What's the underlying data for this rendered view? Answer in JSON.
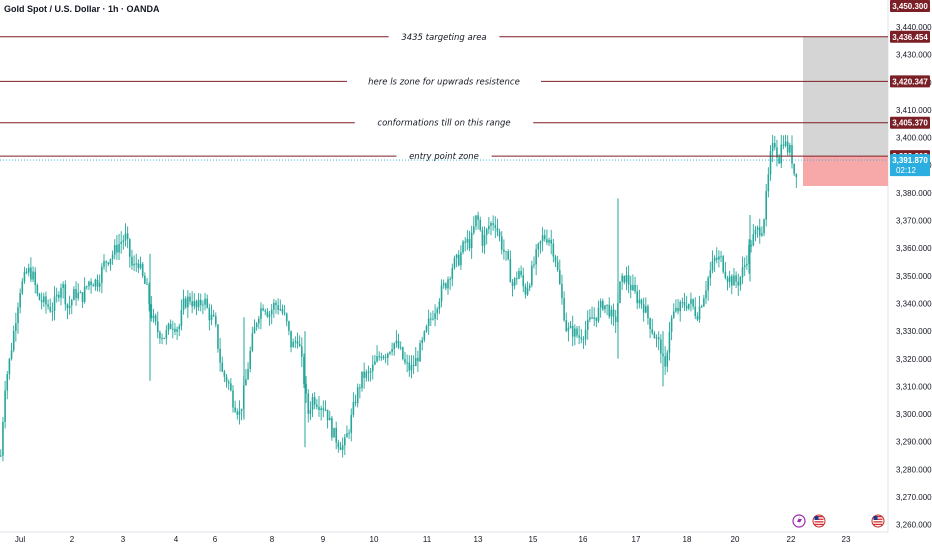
{
  "title": "Gold Spot / U.S. Dollar · 1h · OANDA",
  "chart_data": {
    "type": "candlestick",
    "symbol": "Gold Spot / U.S. Dollar",
    "interval": "1h",
    "source": "OANDA",
    "ylim": [
      3255,
      3452
    ],
    "y_ticks": [
      3260,
      3270,
      3280,
      3290,
      3300,
      3310,
      3320,
      3330,
      3340,
      3350,
      3360,
      3370,
      3380,
      3390,
      3400,
      3410,
      3420,
      3430,
      3440
    ],
    "x_ticks": [
      "Jul",
      "2",
      "3",
      "4",
      "6",
      "8",
      "9",
      "10",
      "11",
      "13",
      "15",
      "16",
      "17",
      "18",
      "20",
      "22",
      "23"
    ],
    "price_path": [
      [
        0,
        3285
      ],
      [
        4,
        3310
      ],
      [
        9,
        3320
      ],
      [
        13,
        3330
      ],
      [
        19,
        3345
      ],
      [
        27,
        3352
      ],
      [
        32,
        3350
      ],
      [
        37,
        3342
      ],
      [
        44,
        3340
      ],
      [
        51,
        3338
      ],
      [
        56,
        3342
      ],
      [
        61,
        3348
      ],
      [
        67,
        3338
      ],
      [
        74,
        3344
      ],
      [
        81,
        3342
      ],
      [
        88,
        3348
      ],
      [
        97,
        3348
      ],
      [
        104,
        3355
      ],
      [
        112,
        3358
      ],
      [
        119,
        3362
      ],
      [
        125,
        3364
      ],
      [
        132,
        3352
      ],
      [
        137,
        3356
      ],
      [
        141,
        3350
      ],
      [
        146,
        3345
      ],
      [
        151,
        3335
      ],
      [
        157,
        3330
      ],
      [
        164,
        3328
      ],
      [
        171,
        3333
      ],
      [
        178,
        3331
      ],
      [
        183,
        3340
      ],
      [
        189,
        3342
      ],
      [
        196,
        3338
      ],
      [
        203,
        3342
      ],
      [
        208,
        3336
      ],
      [
        214,
        3333
      ],
      [
        221,
        3315
      ],
      [
        227,
        3312
      ],
      [
        232,
        3305
      ],
      [
        239,
        3300
      ],
      [
        245,
        3312
      ],
      [
        251,
        3326
      ],
      [
        257,
        3336
      ],
      [
        263,
        3340
      ],
      [
        268,
        3336
      ],
      [
        274,
        3340
      ],
      [
        280,
        3338
      ],
      [
        285,
        3334
      ],
      [
        291,
        3324
      ],
      [
        297,
        3328
      ],
      [
        302,
        3316
      ],
      [
        307,
        3300
      ],
      [
        312,
        3306
      ],
      [
        318,
        3304
      ],
      [
        325,
        3302
      ],
      [
        331,
        3294
      ],
      [
        337,
        3290
      ],
      [
        343,
        3288
      ],
      [
        349,
        3296
      ],
      [
        355,
        3306
      ],
      [
        362,
        3314
      ],
      [
        368,
        3314
      ],
      [
        374,
        3318
      ],
      [
        380,
        3322
      ],
      [
        386,
        3322
      ],
      [
        392,
        3326
      ],
      [
        398,
        3324
      ],
      [
        404,
        3318
      ],
      [
        410,
        3316
      ],
      [
        416,
        3320
      ],
      [
        422,
        3326
      ],
      [
        428,
        3333
      ],
      [
        434,
        3338
      ],
      [
        440,
        3344
      ],
      [
        446,
        3348
      ],
      [
        452,
        3354
      ],
      [
        458,
        3356
      ],
      [
        464,
        3362
      ],
      [
        470,
        3362
      ],
      [
        476,
        3372
      ],
      [
        482,
        3362
      ],
      [
        488,
        3368
      ],
      [
        494,
        3370
      ],
      [
        500,
        3362
      ],
      [
        506,
        3356
      ],
      [
        512,
        3346
      ],
      [
        518,
        3352
      ],
      [
        524,
        3344
      ],
      [
        530,
        3350
      ],
      [
        536,
        3358
      ],
      [
        542,
        3364
      ],
      [
        548,
        3364
      ],
      [
        554,
        3358
      ],
      [
        560,
        3344
      ],
      [
        566,
        3330
      ],
      [
        572,
        3330
      ],
      [
        578,
        3328
      ],
      [
        584,
        3330
      ],
      [
        590,
        3334
      ],
      [
        596,
        3336
      ],
      [
        602,
        3340
      ],
      [
        608,
        3338
      ],
      [
        614,
        3332
      ],
      [
        619,
        3346
      ],
      [
        624,
        3350
      ],
      [
        630,
        3346
      ],
      [
        636,
        3342
      ],
      [
        642,
        3340
      ],
      [
        648,
        3334
      ],
      [
        654,
        3328
      ],
      [
        660,
        3324
      ],
      [
        664,
        3314
      ],
      [
        668,
        3330
      ],
      [
        672,
        3336
      ],
      [
        678,
        3338
      ],
      [
        684,
        3340
      ],
      [
        690,
        3340
      ],
      [
        696,
        3336
      ],
      [
        702,
        3342
      ],
      [
        708,
        3350
      ],
      [
        714,
        3356
      ],
      [
        720,
        3356
      ],
      [
        726,
        3350
      ],
      [
        732,
        3348
      ],
      [
        738,
        3348
      ],
      [
        744,
        3354
      ],
      [
        750,
        3362
      ],
      [
        756,
        3366
      ],
      [
        762,
        3368
      ],
      [
        766,
        3380
      ],
      [
        770,
        3394
      ],
      [
        774,
        3398
      ],
      [
        778,
        3392
      ],
      [
        782,
        3400
      ],
      [
        786,
        3396
      ],
      [
        790,
        3395
      ],
      [
        794,
        3386
      ],
      [
        797,
        3390
      ]
    ],
    "spike_bars": [
      [
        150,
        3312,
        3358
      ],
      [
        244,
        3298,
        3335
      ],
      [
        305,
        3288,
        3330
      ],
      [
        618,
        3320,
        3378
      ],
      [
        663,
        3310,
        3330
      ],
      [
        750,
        3348,
        3372
      ]
    ],
    "levels": [
      {
        "price": 3436.454,
        "label": "3436.454",
        "note": "3435 targeting area"
      },
      {
        "price": 3420.347,
        "label": "3420.347",
        "note": "here ls zone for upwrads resistence"
      },
      {
        "price": 3405.37,
        "label": "3405.370",
        "note": "conformations till on this range"
      },
      {
        "price": 3393.302,
        "label": "3393.302",
        "note": "entry point zone"
      }
    ],
    "top_tag": {
      "price": 3450.3,
      "label": "3,450.300"
    },
    "current_price": {
      "price": 3391.87,
      "label": "3,391.870",
      "countdown": "02:12"
    },
    "target_zone": {
      "from": 3393.302,
      "to": 3436.454
    },
    "stop_zone": {
      "from": 3382.5,
      "to": 3393.302
    }
  },
  "colors": {
    "candle": "#26a69a",
    "level_line": "#7b1f26",
    "level_tag": "#7b1f26",
    "current_tag": "#2aaee0",
    "target_zone": "#d5d5d5",
    "stop_zone": "#f7a9a9"
  },
  "icons": [
    "lightning-icon",
    "us-flag-icon",
    "us-flag-icon"
  ]
}
